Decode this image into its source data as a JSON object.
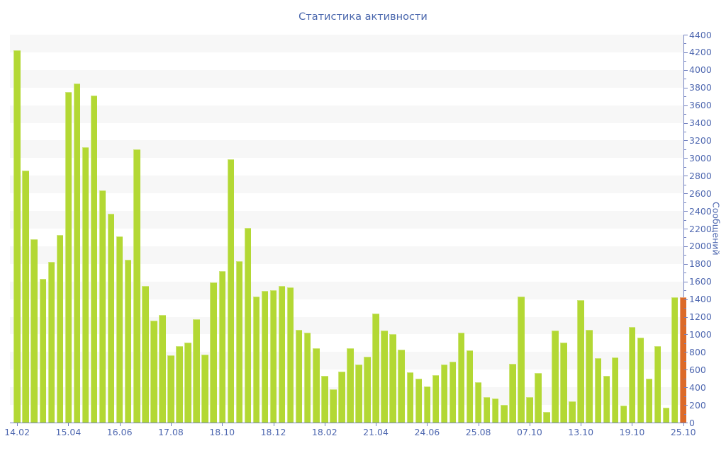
{
  "page": {
    "title": "Статистика активности"
  },
  "chart_data": {
    "type": "bar",
    "title": "Статистика активности",
    "ylabel": "Сообщений",
    "y_min": 0,
    "y_max": 4400,
    "y_major_step": 200,
    "y_minor_step": 100,
    "grid": "striped-bands",
    "legend": "none",
    "x_tick_labels": [
      "14.02",
      "15.04",
      "16.06",
      "17.08",
      "18.10",
      "18.12",
      "18.02",
      "21.04",
      "24.06",
      "25.08",
      "07.10",
      "13.10",
      "19.10",
      "25.10"
    ],
    "x_tick_indices": [
      0,
      6,
      12,
      18,
      24,
      30,
      36,
      42,
      48,
      54,
      60,
      66,
      72,
      78
    ],
    "values": [
      4220,
      2860,
      2080,
      1630,
      1820,
      2130,
      3750,
      3850,
      3120,
      3710,
      2630,
      2370,
      2110,
      1850,
      3100,
      1550,
      1160,
      1220,
      760,
      870,
      910,
      1170,
      770,
      1590,
      1720,
      2990,
      1830,
      2210,
      1430,
      1490,
      1500,
      1550,
      1530,
      1050,
      1020,
      840,
      530,
      380,
      580,
      840,
      660,
      750,
      1240,
      1040,
      1000,
      830,
      570,
      500,
      410,
      540,
      660,
      690,
      1020,
      820,
      460,
      290,
      270,
      200,
      670,
      1430,
      290,
      560,
      120,
      1040,
      910,
      240,
      1390,
      1050,
      730,
      530,
      740,
      195,
      1080,
      960,
      500,
      870,
      170,
      1420,
      1420
    ],
    "colors": {
      "bar": "#b3d834",
      "last_bar": "#dc6a28",
      "stripe": "#f7f7f7",
      "axis": "#7382c1",
      "tick_text": "#4f68b0",
      "title_text": "#4a67ad"
    }
  }
}
